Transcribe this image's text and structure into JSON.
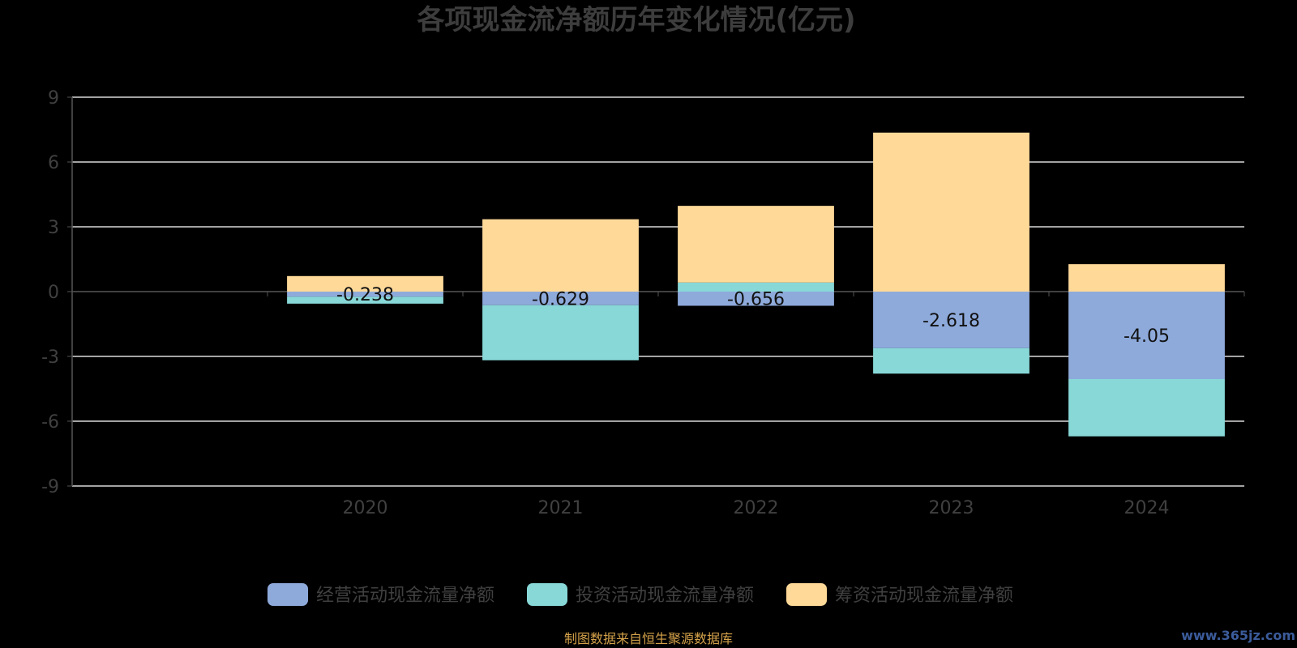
{
  "chart_data": {
    "type": "bar",
    "stacked": true,
    "title": "各项现金流净额历年变化情况(亿元)",
    "categories": [
      "2020",
      "2021",
      "2022",
      "2023",
      "2024"
    ],
    "y_ticks": [
      "9",
      "6",
      "3",
      "0",
      "-3",
      "-6",
      "-9"
    ],
    "ylim": [
      -9,
      9
    ],
    "grid": true,
    "legend_position": "bottom",
    "series": [
      {
        "name": "经营活动现金流量净额",
        "color": "#8eaadb",
        "values": [
          -0.238,
          -0.629,
          -0.656,
          -2.618,
          -4.05
        ],
        "labels": [
          "-0.238",
          "-0.629",
          "-0.656",
          "-2.618",
          "-4.05"
        ]
      },
      {
        "name": "投资活动现金流量净额",
        "color": "#88d8d8",
        "values": [
          -0.32,
          -2.55,
          0.42,
          -1.18,
          -2.65
        ]
      },
      {
        "name": "筹资活动现金流量净额",
        "color": "#ffd998",
        "values": [
          0.72,
          3.35,
          3.55,
          7.36,
          1.27
        ]
      }
    ]
  },
  "footer": {
    "source": "制图数据来自恒生聚源数据库",
    "watermark": "www.365jz.com"
  }
}
